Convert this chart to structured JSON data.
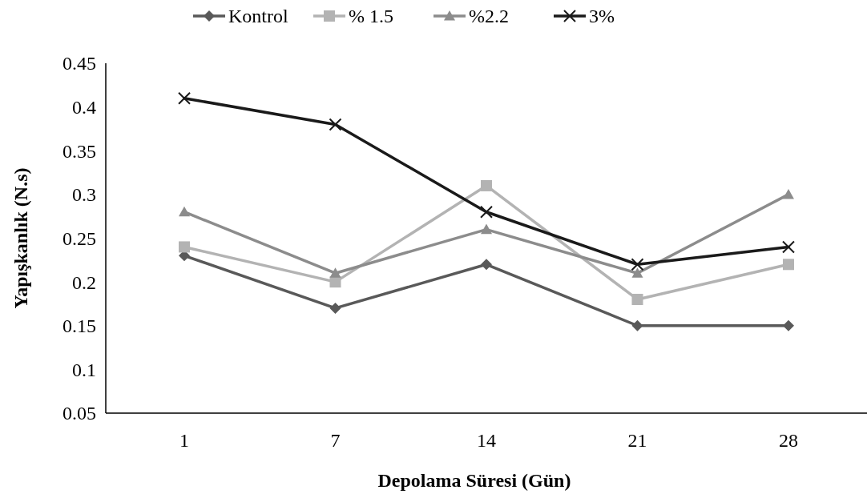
{
  "chart_data": {
    "type": "line",
    "xlabel": "Depolama Süresi (Gün)",
    "ylabel": "Yapışkanlık (N.s)",
    "categories": [
      "1",
      "7",
      "14",
      "21",
      "28"
    ],
    "ylim": [
      0.05,
      0.45
    ],
    "yticks": [
      0.05,
      0.1,
      0.15,
      0.2,
      0.25,
      0.3,
      0.35,
      0.4,
      0.45
    ],
    "grid": false,
    "legend": "top",
    "line_style": "solid",
    "series": [
      {
        "name": "Kontrol",
        "color": "#595959",
        "marker": "diamond",
        "values": [
          0.23,
          0.17,
          0.22,
          0.15,
          0.15
        ]
      },
      {
        "name": "% 1.5",
        "color": "#b3b3b3",
        "marker": "square",
        "values": [
          0.24,
          0.2,
          0.31,
          0.18,
          0.22
        ]
      },
      {
        "name": "%2.2",
        "color": "#8c8c8c",
        "marker": "triangle",
        "values": [
          0.28,
          0.21,
          0.26,
          0.21,
          0.3
        ]
      },
      {
        "name": "3%",
        "color": "#1a1a1a",
        "marker": "cross",
        "values": [
          0.41,
          0.38,
          0.28,
          0.22,
          0.24
        ]
      }
    ]
  }
}
